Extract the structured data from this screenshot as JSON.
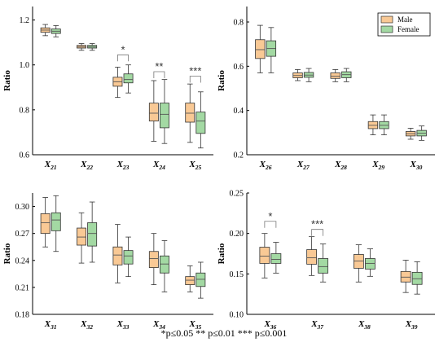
{
  "colors": {
    "male": "#f9c995",
    "female": "#a3d9a3",
    "stroke": "#333333",
    "median": "#555555",
    "bracket": "#777777"
  },
  "legend": {
    "male": "Male",
    "female": "Female"
  },
  "footnote": "*p≤0.05    ** p≤0.01  *** p≤0.001",
  "chart_data": [
    {
      "type": "box",
      "ylabel": "Ratio",
      "ylim": [
        0.6,
        1.26
      ],
      "yticks": [
        "0.6",
        "0.8",
        "1.0",
        "1.2"
      ],
      "categories": [
        {
          "sym": "X",
          "sub": "21"
        },
        {
          "sym": "X",
          "sub": "22"
        },
        {
          "sym": "X",
          "sub": "23"
        },
        {
          "sym": "X",
          "sub": "24"
        },
        {
          "sym": "X",
          "sub": "25"
        }
      ],
      "series": [
        {
          "name": "Male",
          "boxes": [
            {
              "min": 1.13,
              "q1": 1.145,
              "median": 1.155,
              "q3": 1.165,
              "max": 1.18
            },
            {
              "min": 1.065,
              "q1": 1.075,
              "median": 1.08,
              "q3": 1.087,
              "max": 1.095
            },
            {
              "min": 0.855,
              "q1": 0.905,
              "median": 0.925,
              "q3": 0.945,
              "max": 0.99
            },
            {
              "min": 0.66,
              "q1": 0.75,
              "median": 0.785,
              "q3": 0.83,
              "max": 0.93
            },
            {
              "min": 0.655,
              "q1": 0.745,
              "median": 0.785,
              "q3": 0.83,
              "max": 0.915
            }
          ]
        },
        {
          "name": "Female",
          "boxes": [
            {
              "min": 1.125,
              "q1": 1.14,
              "median": 1.15,
              "q3": 1.16,
              "max": 1.175
            },
            {
              "min": 1.065,
              "q1": 1.075,
              "median": 1.08,
              "q3": 1.087,
              "max": 1.095
            },
            {
              "min": 0.875,
              "q1": 0.92,
              "median": 0.935,
              "q3": 0.96,
              "max": 1.0
            },
            {
              "min": 0.65,
              "q1": 0.72,
              "median": 0.78,
              "q3": 0.83,
              "max": 0.935
            },
            {
              "min": 0.63,
              "q1": 0.695,
              "median": 0.75,
              "q3": 0.79,
              "max": 0.88
            }
          ]
        }
      ],
      "significance": [
        {
          "index": 2,
          "label": "*",
          "y": 1.045
        },
        {
          "index": 3,
          "label": "**",
          "y": 0.97
        },
        {
          "index": 4,
          "label": "***",
          "y": 0.95
        }
      ]
    },
    {
      "type": "box",
      "ylabel": "Ratio",
      "ylim": [
        0.2,
        0.87
      ],
      "yticks": [
        "0.2",
        "0.4",
        "0.6",
        "0.8"
      ],
      "categories": [
        {
          "sym": "X",
          "sub": "26"
        },
        {
          "sym": "X",
          "sub": "27"
        },
        {
          "sym": "X",
          "sub": "28"
        },
        {
          "sym": "X",
          "sub": "29"
        },
        {
          "sym": "X",
          "sub": "30"
        }
      ],
      "series": [
        {
          "name": "Male",
          "boxes": [
            {
              "min": 0.57,
              "q1": 0.635,
              "median": 0.675,
              "q3": 0.72,
              "max": 0.785
            },
            {
              "min": 0.535,
              "q1": 0.548,
              "median": 0.558,
              "q3": 0.57,
              "max": 0.585
            },
            {
              "min": 0.53,
              "q1": 0.545,
              "median": 0.555,
              "q3": 0.57,
              "max": 0.585
            },
            {
              "min": 0.29,
              "q1": 0.318,
              "median": 0.333,
              "q3": 0.35,
              "max": 0.38
            },
            {
              "min": 0.27,
              "q1": 0.285,
              "median": 0.295,
              "q3": 0.305,
              "max": 0.32
            }
          ]
        },
        {
          "name": "Female",
          "boxes": [
            {
              "min": 0.57,
              "q1": 0.645,
              "median": 0.68,
              "q3": 0.715,
              "max": 0.775
            },
            {
              "min": 0.53,
              "q1": 0.55,
              "median": 0.56,
              "q3": 0.572,
              "max": 0.59
            },
            {
              "min": 0.53,
              "q1": 0.548,
              "median": 0.562,
              "q3": 0.575,
              "max": 0.59
            },
            {
              "min": 0.29,
              "q1": 0.318,
              "median": 0.333,
              "q3": 0.35,
              "max": 0.38
            },
            {
              "min": 0.265,
              "q1": 0.285,
              "median": 0.297,
              "q3": 0.31,
              "max": 0.33
            }
          ]
        }
      ],
      "legend": true
    },
    {
      "type": "box",
      "ylabel": "Ratio",
      "ylim": [
        0.18,
        0.315
      ],
      "yticks": [
        "0.18",
        "0.21",
        "0.24",
        "0.27",
        "0.30"
      ],
      "categories": [
        {
          "sym": "X",
          "sub": "31"
        },
        {
          "sym": "X",
          "sub": "32"
        },
        {
          "sym": "X",
          "sub": "33"
        },
        {
          "sym": "X",
          "sub": "34"
        },
        {
          "sym": "X",
          "sub": "35"
        }
      ],
      "series": [
        {
          "name": "Male",
          "boxes": [
            {
              "min": 0.255,
              "q1": 0.27,
              "median": 0.282,
              "q3": 0.292,
              "max": 0.31
            },
            {
              "min": 0.237,
              "q1": 0.257,
              "median": 0.266,
              "q3": 0.276,
              "max": 0.293
            },
            {
              "min": 0.215,
              "q1": 0.235,
              "median": 0.246,
              "q3": 0.255,
              "max": 0.28
            },
            {
              "min": 0.213,
              "q1": 0.232,
              "median": 0.242,
              "q3": 0.25,
              "max": 0.27
            },
            {
              "min": 0.205,
              "q1": 0.213,
              "median": 0.218,
              "q3": 0.222,
              "max": 0.234
            }
          ]
        },
        {
          "name": "Female",
          "boxes": [
            {
              "min": 0.25,
              "q1": 0.273,
              "median": 0.285,
              "q3": 0.293,
              "max": 0.312
            },
            {
              "min": 0.238,
              "q1": 0.256,
              "median": 0.27,
              "q3": 0.282,
              "max": 0.305
            },
            {
              "min": 0.222,
              "q1": 0.236,
              "median": 0.245,
              "q3": 0.251,
              "max": 0.266
            },
            {
              "min": 0.205,
              "q1": 0.226,
              "median": 0.236,
              "q3": 0.245,
              "max": 0.262
            },
            {
              "min": 0.198,
              "q1": 0.211,
              "median": 0.219,
              "q3": 0.226,
              "max": 0.238
            }
          ]
        }
      ]
    },
    {
      "type": "box",
      "ylabel": "Ratio",
      "ylim": [
        0.1,
        0.25
      ],
      "yticks": [
        "0.10",
        "0.15",
        "0.20",
        "0.25"
      ],
      "categories": [
        {
          "sym": "X",
          "sub": "36"
        },
        {
          "sym": "X",
          "sub": "37"
        },
        {
          "sym": "X",
          "sub": "38"
        },
        {
          "sym": "X",
          "sub": "39"
        }
      ],
      "series": [
        {
          "name": "Male",
          "boxes": [
            {
              "min": 0.145,
              "q1": 0.163,
              "median": 0.172,
              "q3": 0.183,
              "max": 0.2
            },
            {
              "min": 0.148,
              "q1": 0.162,
              "median": 0.17,
              "q3": 0.18,
              "max": 0.196
            },
            {
              "min": 0.14,
              "q1": 0.157,
              "median": 0.166,
              "q3": 0.174,
              "max": 0.186
            },
            {
              "min": 0.127,
              "q1": 0.14,
              "median": 0.146,
              "q3": 0.153,
              "max": 0.167
            }
          ]
        },
        {
          "name": "Female",
          "boxes": [
            {
              "min": 0.151,
              "q1": 0.163,
              "median": 0.168,
              "q3": 0.175,
              "max": 0.189
            },
            {
              "min": 0.14,
              "q1": 0.151,
              "median": 0.159,
              "q3": 0.169,
              "max": 0.187
            },
            {
              "min": 0.147,
              "q1": 0.156,
              "median": 0.163,
              "q3": 0.169,
              "max": 0.181
            },
            {
              "min": 0.125,
              "q1": 0.137,
              "median": 0.144,
              "q3": 0.152,
              "max": 0.165
            }
          ]
        }
      ],
      "significance": [
        {
          "index": 0,
          "label": "*",
          "y": 0.215
        },
        {
          "index": 1,
          "label": "***",
          "y": 0.205
        }
      ]
    }
  ]
}
